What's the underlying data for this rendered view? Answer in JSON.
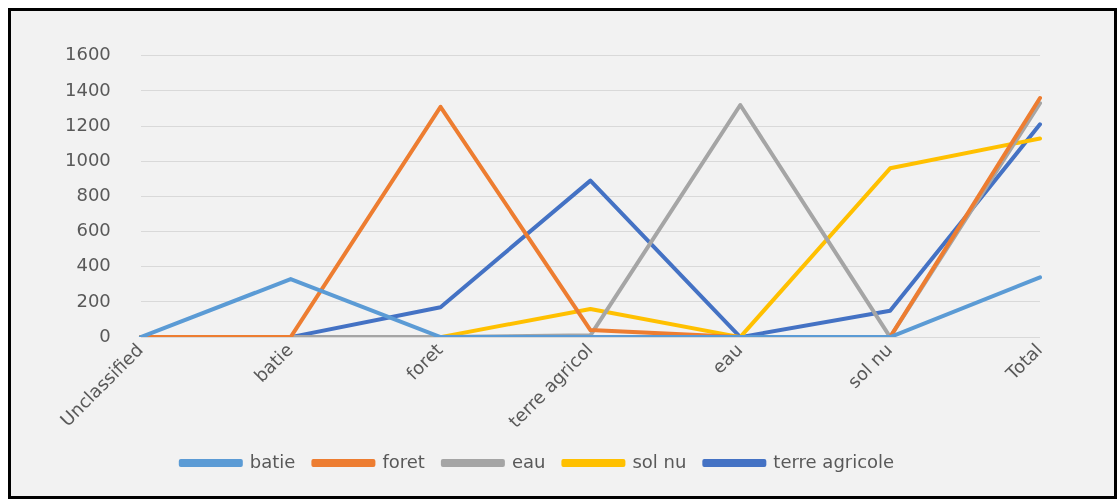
{
  "chart_data": {
    "type": "line",
    "categories": [
      "Unclassified",
      "batie",
      "foret",
      "terre agricol",
      "eau",
      "sol nu",
      "Total"
    ],
    "series": [
      {
        "name": "batie",
        "color": "#5b9bd5",
        "values": [
          0,
          330,
          0,
          0,
          0,
          0,
          340
        ]
      },
      {
        "name": "foret",
        "color": "#ed7d31",
        "values": [
          0,
          0,
          1310,
          40,
          0,
          0,
          1360
        ]
      },
      {
        "name": "eau",
        "color": "#a5a5a5",
        "values": [
          0,
          0,
          0,
          10,
          1320,
          0,
          1330
        ]
      },
      {
        "name": "sol nu",
        "color": "#ffc000",
        "values": [
          0,
          0,
          0,
          160,
          0,
          960,
          1130
        ]
      },
      {
        "name": "terre agricole",
        "color": "#4472c4",
        "values": [
          0,
          0,
          170,
          890,
          0,
          150,
          1210
        ]
      }
    ],
    "ylim": [
      0,
      1600
    ],
    "yticks": [
      0,
      200,
      400,
      600,
      800,
      1000,
      1200,
      1400,
      1600
    ],
    "grid": "y",
    "legend": "bottom",
    "marker": "none",
    "line_style": "solid"
  }
}
